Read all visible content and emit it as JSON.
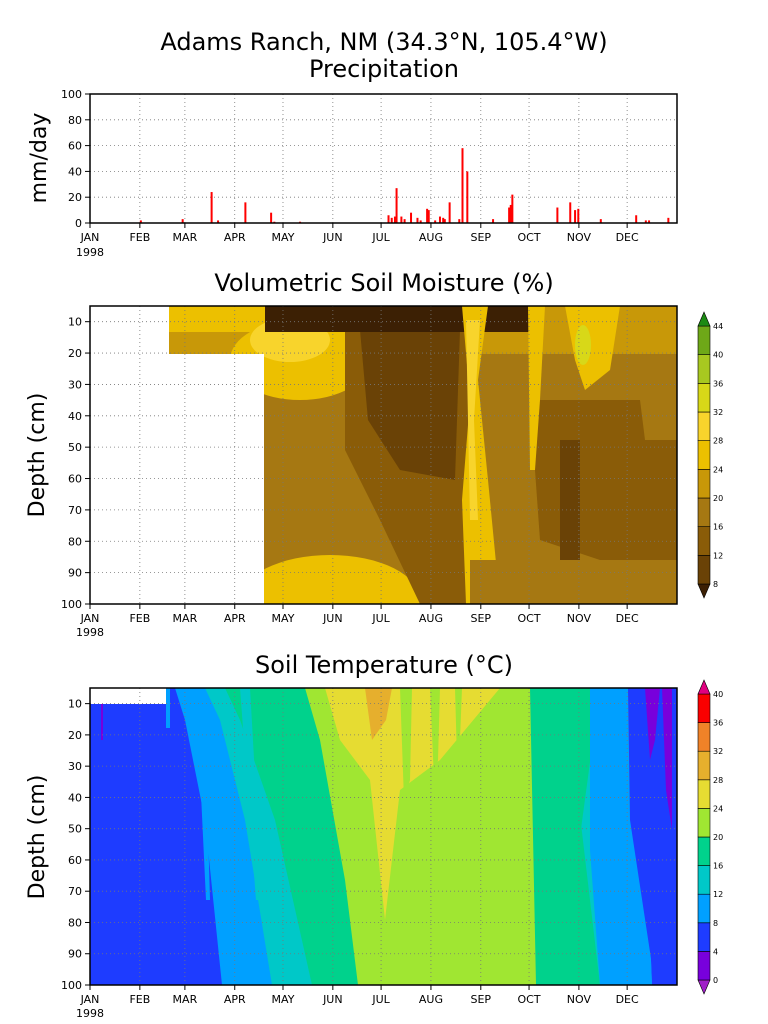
{
  "title": "Adams Ranch, NM (34.3°N, 105.4°W)",
  "chart_data": [
    {
      "type": "bar",
      "title": "Precipitation",
      "ylabel": "mm/day",
      "ylim": [
        0,
        100
      ],
      "yticks": [
        "0",
        "20",
        "40",
        "60",
        "80",
        "100"
      ],
      "xtick_labels": [
        "JAN",
        "FEB",
        "MAR",
        "APR",
        "MAY",
        "JUN",
        "JUL",
        "AUG",
        "SEP",
        "OCT",
        "NOV",
        "DEC"
      ],
      "year_label": "1998",
      "grid": true,
      "bar_color": "#ff0000",
      "x": [
        32,
        58,
        76,
        80,
        97,
        113,
        115,
        131,
        186,
        188,
        190,
        191,
        194,
        196,
        200,
        204,
        206,
        210,
        211,
        215,
        218,
        220,
        221,
        224,
        230,
        232,
        235,
        251,
        261,
        262,
        263,
        291,
        299,
        302,
        304,
        318,
        340,
        346,
        348,
        360
      ],
      "values": [
        2,
        3,
        24,
        2,
        16,
        8,
        1,
        1,
        6,
        4,
        5,
        27,
        5,
        3,
        8,
        4,
        2,
        11,
        10,
        2,
        5,
        4,
        3,
        16,
        3,
        58,
        40,
        3,
        12,
        14,
        22,
        12,
        16,
        10,
        11,
        3,
        6,
        2,
        2,
        4
      ]
    },
    {
      "type": "heatmap",
      "title": "Volumetric Soil Moisture (%)",
      "ylabel": "Depth (cm)",
      "yticks": [
        "10",
        "20",
        "30",
        "40",
        "50",
        "60",
        "70",
        "80",
        "90",
        "100"
      ],
      "xtick_labels": [
        "JAN",
        "FEB",
        "MAR",
        "APR",
        "MAY",
        "JUN",
        "JUL",
        "AUG",
        "SEP",
        "OCT",
        "NOV",
        "DEC"
      ],
      "year_label": "1998",
      "grid": true,
      "colorbar_labels": [
        "8",
        "12",
        "16",
        "20",
        "24",
        "28",
        "32",
        "36",
        "40",
        "44"
      ],
      "colorbar_colors": [
        "#3c2004",
        "#6a4206",
        "#8a5c08",
        "#a67812",
        "#c89808",
        "#ecc000",
        "#f8d42c",
        "#d8d818",
        "#a8c820",
        "#6ea818",
        "#1c8a14"
      ]
    },
    {
      "type": "heatmap",
      "title": "Soil Temperature (°C)",
      "ylabel": "Depth (cm)",
      "yticks": [
        "10",
        "20",
        "30",
        "40",
        "50",
        "60",
        "70",
        "80",
        "90",
        "100"
      ],
      "xtick_labels": [
        "JAN",
        "FEB",
        "MAR",
        "APR",
        "MAY",
        "JUN",
        "JUL",
        "AUG",
        "SEP",
        "OCT",
        "NOV",
        "DEC"
      ],
      "year_label": "1998",
      "grid": true,
      "colorbar_labels": [
        "0",
        "4",
        "8",
        "12",
        "16",
        "20",
        "24",
        "28",
        "32",
        "36",
        "40"
      ],
      "colorbar_colors": [
        "#a020c8",
        "#7800dc",
        "#1e3cff",
        "#00a0ff",
        "#00c8c8",
        "#00d28c",
        "#a0e632",
        "#e6dc32",
        "#e6af2d",
        "#f08228",
        "#fa0000",
        "#e00080"
      ]
    }
  ]
}
